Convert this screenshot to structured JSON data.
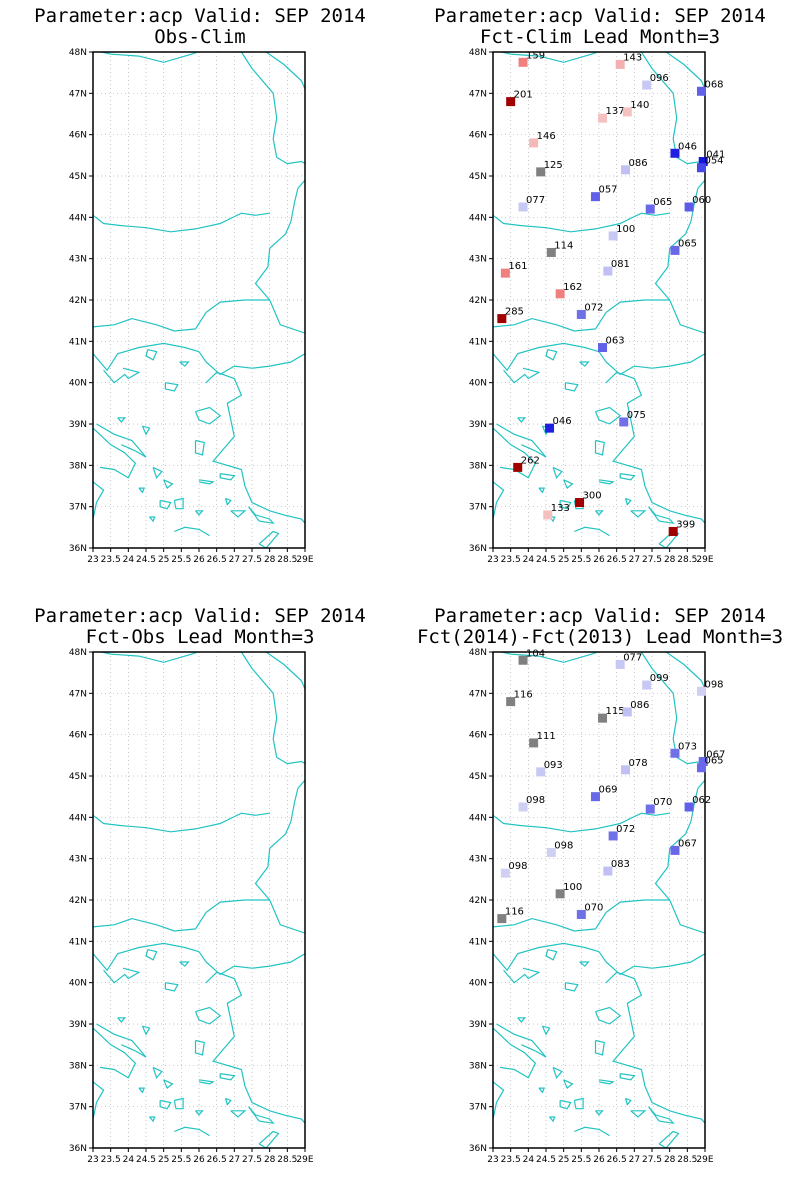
{
  "colors": {
    "coast": "#22c3c3",
    "grid": "#b0b0b0",
    "frame": "#000000"
  },
  "axes": {
    "lat_ticks": [
      "36N",
      "37N",
      "38N",
      "39N",
      "40N",
      "41N",
      "42N",
      "43N",
      "44N",
      "45N",
      "46N",
      "47N",
      "48N"
    ],
    "lon_ticks": [
      "23",
      "23.5",
      "24",
      "24.5",
      "25",
      "25.5",
      "26",
      "26.5",
      "27",
      "27.5",
      "28",
      "28.5",
      "29E"
    ],
    "lat_range": [
      36,
      48
    ],
    "lon_range": [
      23,
      29
    ]
  },
  "panels": [
    {
      "title1": "Parameter:acp Valid: SEP 2014",
      "title2": "Obs-Clim",
      "stations": []
    },
    {
      "title1": "Parameter:acp Valid: SEP 2014",
      "title2": "Fct-Clim Lead Month=3",
      "stations": [
        {
          "lon": 23.85,
          "lat": 47.75,
          "label": "159",
          "color": "#f08080"
        },
        {
          "lon": 26.6,
          "lat": 47.7,
          "label": "143",
          "color": "#f4b0b0"
        },
        {
          "lon": 27.35,
          "lat": 47.2,
          "label": "096",
          "color": "#c8c8f4"
        },
        {
          "lon": 28.9,
          "lat": 47.05,
          "label": "068",
          "color": "#6060e8"
        },
        {
          "lon": 23.5,
          "lat": 46.8,
          "label": "201",
          "color": "#a00000"
        },
        {
          "lon": 26.1,
          "lat": 46.4,
          "label": "137",
          "color": "#f4c0c0"
        },
        {
          "lon": 26.8,
          "lat": 46.55,
          "label": "140",
          "color": "#f4c0c0"
        },
        {
          "lon": 24.15,
          "lat": 45.8,
          "label": "146",
          "color": "#f4b8b8"
        },
        {
          "lon": 28.15,
          "lat": 45.55,
          "label": "046",
          "color": "#2020e0"
        },
        {
          "lon": 28.95,
          "lat": 45.35,
          "label": "041",
          "color": "#1818d8"
        },
        {
          "lon": 28.9,
          "lat": 45.2,
          "label": "054",
          "color": "#4848e8"
        },
        {
          "lon": 24.35,
          "lat": 45.1,
          "label": "125",
          "color": "#808080"
        },
        {
          "lon": 26.75,
          "lat": 45.15,
          "label": "086",
          "color": "#c0c0f4"
        },
        {
          "lon": 25.9,
          "lat": 44.5,
          "label": "057",
          "color": "#6060e8"
        },
        {
          "lon": 23.85,
          "lat": 44.25,
          "label": "077",
          "color": "#c8c8f4"
        },
        {
          "lon": 27.45,
          "lat": 44.2,
          "label": "065",
          "color": "#6868e8"
        },
        {
          "lon": 28.55,
          "lat": 44.25,
          "label": "060",
          "color": "#5c5ce8"
        },
        {
          "lon": 26.4,
          "lat": 43.55,
          "label": "100",
          "color": "#c8c8f4"
        },
        {
          "lon": 24.65,
          "lat": 43.15,
          "label": "114",
          "color": "#808080"
        },
        {
          "lon": 28.15,
          "lat": 43.2,
          "label": "065",
          "color": "#6868e8"
        },
        {
          "lon": 23.35,
          "lat": 42.65,
          "label": "161",
          "color": "#f08080"
        },
        {
          "lon": 26.25,
          "lat": 42.7,
          "label": "081",
          "color": "#c0c0f4"
        },
        {
          "lon": 24.9,
          "lat": 42.15,
          "label": "162",
          "color": "#f08080"
        },
        {
          "lon": 23.25,
          "lat": 41.55,
          "label": "285",
          "color": "#a00000"
        },
        {
          "lon": 25.5,
          "lat": 41.65,
          "label": "072",
          "color": "#7070e8"
        },
        {
          "lon": 26.1,
          "lat": 40.85,
          "label": "063",
          "color": "#6060e8"
        },
        {
          "lon": 26.7,
          "lat": 39.05,
          "label": "075",
          "color": "#7070e8"
        },
        {
          "lon": 24.6,
          "lat": 38.9,
          "label": "046",
          "color": "#2020e0"
        },
        {
          "lon": 23.7,
          "lat": 37.95,
          "label": "262",
          "color": "#a00000"
        },
        {
          "lon": 25.45,
          "lat": 37.1,
          "label": "300",
          "color": "#a00000"
        },
        {
          "lon": 24.55,
          "lat": 36.8,
          "label": "133",
          "color": "#f4c0c0"
        },
        {
          "lon": 28.1,
          "lat": 36.4,
          "label": "399",
          "color": "#a00000"
        }
      ]
    },
    {
      "title1": "Parameter:acp Valid: SEP 2014",
      "title2": "Fct-Obs Lead Month=3",
      "stations": []
    },
    {
      "title1": "Parameter:acp Valid: SEP 2014",
      "title2": "Fct(2014)-Fct(2013) Lead Month=3",
      "stations": [
        {
          "lon": 23.85,
          "lat": 47.8,
          "label": "104",
          "color": "#808080"
        },
        {
          "lon": 26.6,
          "lat": 47.7,
          "label": "077",
          "color": "#c8c8f4"
        },
        {
          "lon": 27.35,
          "lat": 47.2,
          "label": "099",
          "color": "#c8c8f4"
        },
        {
          "lon": 28.9,
          "lat": 47.05,
          "label": "098",
          "color": "#d0d0f4"
        },
        {
          "lon": 23.5,
          "lat": 46.8,
          "label": "116",
          "color": "#808080"
        },
        {
          "lon": 26.1,
          "lat": 46.4,
          "label": "115",
          "color": "#808080"
        },
        {
          "lon": 26.8,
          "lat": 46.55,
          "label": "086",
          "color": "#c0c0f4"
        },
        {
          "lon": 24.15,
          "lat": 45.8,
          "label": "111",
          "color": "#808080"
        },
        {
          "lon": 28.15,
          "lat": 45.55,
          "label": "073",
          "color": "#7070e8"
        },
        {
          "lon": 28.95,
          "lat": 45.35,
          "label": "067",
          "color": "#6868e8"
        },
        {
          "lon": 28.9,
          "lat": 45.2,
          "label": "065",
          "color": "#6868e8"
        },
        {
          "lon": 24.35,
          "lat": 45.1,
          "label": "093",
          "color": "#c8c8f4"
        },
        {
          "lon": 26.75,
          "lat": 45.15,
          "label": "078",
          "color": "#c0c0f4"
        },
        {
          "lon": 25.9,
          "lat": 44.5,
          "label": "069",
          "color": "#6868e8"
        },
        {
          "lon": 23.85,
          "lat": 44.25,
          "label": "098",
          "color": "#d0d0f4"
        },
        {
          "lon": 27.45,
          "lat": 44.2,
          "label": "070",
          "color": "#7070e8"
        },
        {
          "lon": 28.55,
          "lat": 44.25,
          "label": "062",
          "color": "#6060e8"
        },
        {
          "lon": 26.4,
          "lat": 43.55,
          "label": "072",
          "color": "#7070e8"
        },
        {
          "lon": 24.65,
          "lat": 43.15,
          "label": "098",
          "color": "#d0d0f4"
        },
        {
          "lon": 28.15,
          "lat": 43.2,
          "label": "067",
          "color": "#6868e8"
        },
        {
          "lon": 23.35,
          "lat": 42.65,
          "label": "098",
          "color": "#d0d0f4"
        },
        {
          "lon": 26.25,
          "lat": 42.7,
          "label": "083",
          "color": "#c0c0f4"
        },
        {
          "lon": 24.9,
          "lat": 42.15,
          "label": "100",
          "color": "#808080"
        },
        {
          "lon": 23.25,
          "lat": 41.55,
          "label": "116",
          "color": "#808080"
        },
        {
          "lon": 25.5,
          "lat": 41.65,
          "label": "070",
          "color": "#7070e8"
        }
      ]
    }
  ]
}
